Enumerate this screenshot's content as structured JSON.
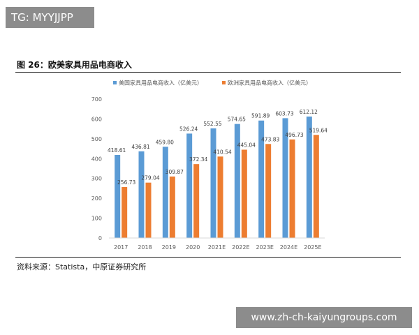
{
  "tag_badge": "TG: MYYJJPP",
  "figure_title": "图 26：欧美家具用品电商收入",
  "source_note": "资料来源：Statista，中原证券研究所",
  "watermark_text": "www.zh-ch-kaiyungroups.com",
  "colors": {
    "series_us": "#5b9bd5",
    "series_eu": "#ed7d31",
    "axis": "#d9d9d9",
    "text": "#595959"
  },
  "chart_data": {
    "type": "bar",
    "categories": [
      "2017",
      "2018",
      "2019",
      "2020",
      "2021E",
      "2022E",
      "2023E",
      "2024E",
      "2025E"
    ],
    "series": [
      {
        "name": "美国家具用品电商收入（亿美元）",
        "values": [
          418.61,
          436.81,
          459.8,
          526.24,
          552.55,
          574.65,
          591.89,
          603.73,
          612.12
        ]
      },
      {
        "name": "欧洲家具用品电商收入（亿美元）",
        "values": [
          256.73,
          279.04,
          309.87,
          372.34,
          410.54,
          445.04,
          473.83,
          496.73,
          519.64
        ]
      }
    ],
    "ylim": [
      0,
      700
    ],
    "yticks": [
      0,
      100,
      200,
      300,
      400,
      500,
      600,
      700
    ],
    "grid": false,
    "legend_position": "top",
    "data_labels": true
  }
}
